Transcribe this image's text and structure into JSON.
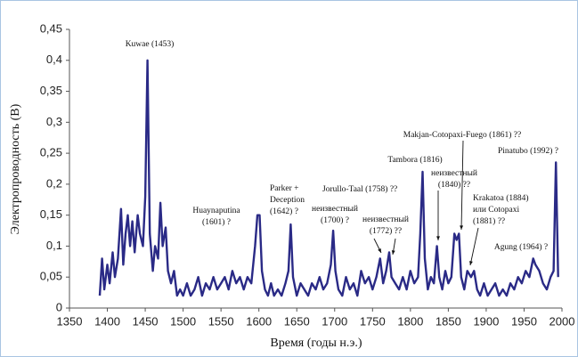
{
  "chart_data": {
    "type": "line",
    "x_label": "Время (годы н.э.)",
    "y_label": "Электропроводность (В)",
    "xlim": [
      1350,
      2000
    ],
    "xticks": [
      1350,
      1400,
      1450,
      1500,
      1550,
      1600,
      1650,
      1700,
      1750,
      1800,
      1850,
      1900,
      1950,
      2000
    ],
    "ylim": [
      0,
      0.45
    ],
    "yticks": [
      {
        "value": 0,
        "label": "0"
      },
      {
        "value": 0.05,
        "label": "0,05"
      },
      {
        "value": 0.1,
        "label": "0,1"
      },
      {
        "value": 0.15,
        "label": "0,15"
      },
      {
        "value": 0.2,
        "label": "0,2"
      },
      {
        "value": 0.25,
        "label": "0,25"
      },
      {
        "value": 0.3,
        "label": "0,3"
      },
      {
        "value": 0.35,
        "label": "0,35"
      },
      {
        "value": 0.4,
        "label": "0,4"
      },
      {
        "value": 0.45,
        "label": "0,45"
      }
    ],
    "grid": false,
    "series": [
      {
        "name": "Электропроводность",
        "color": "#2a2a86",
        "x": [
          1390,
          1393,
          1396,
          1400,
          1403,
          1407,
          1410,
          1414,
          1418,
          1421,
          1424,
          1427,
          1430,
          1433,
          1436,
          1440,
          1443,
          1447,
          1450,
          1453,
          1456,
          1460,
          1463,
          1467,
          1470,
          1473,
          1477,
          1480,
          1484,
          1488,
          1492,
          1496,
          1500,
          1505,
          1510,
          1515,
          1520,
          1525,
          1530,
          1535,
          1540,
          1545,
          1550,
          1555,
          1560,
          1565,
          1570,
          1575,
          1580,
          1585,
          1590,
          1595,
          1598,
          1601,
          1604,
          1608,
          1612,
          1616,
          1620,
          1625,
          1630,
          1635,
          1639,
          1642,
          1645,
          1650,
          1655,
          1660,
          1665,
          1670,
          1675,
          1680,
          1685,
          1690,
          1695,
          1698,
          1701,
          1705,
          1710,
          1715,
          1720,
          1725,
          1730,
          1735,
          1740,
          1745,
          1750,
          1755,
          1760,
          1764,
          1768,
          1772,
          1775,
          1780,
          1785,
          1790,
          1795,
          1800,
          1805,
          1810,
          1813,
          1816,
          1819,
          1823,
          1827,
          1831,
          1835,
          1838,
          1842,
          1846,
          1850,
          1854,
          1858,
          1861,
          1864,
          1867,
          1871,
          1875,
          1880,
          1884,
          1888,
          1892,
          1897,
          1902,
          1907,
          1912,
          1917,
          1922,
          1927,
          1932,
          1937,
          1942,
          1947,
          1952,
          1957,
          1962,
          1965,
          1970,
          1975,
          1980,
          1985,
          1989,
          1992,
          1995
        ],
        "values": [
          0.02,
          0.08,
          0.03,
          0.07,
          0.04,
          0.09,
          0.05,
          0.08,
          0.16,
          0.07,
          0.12,
          0.15,
          0.1,
          0.14,
          0.09,
          0.15,
          0.12,
          0.1,
          0.18,
          0.4,
          0.12,
          0.06,
          0.1,
          0.08,
          0.17,
          0.1,
          0.13,
          0.06,
          0.04,
          0.06,
          0.02,
          0.03,
          0.02,
          0.04,
          0.02,
          0.03,
          0.05,
          0.02,
          0.04,
          0.03,
          0.05,
          0.03,
          0.04,
          0.05,
          0.03,
          0.06,
          0.04,
          0.05,
          0.03,
          0.05,
          0.04,
          0.1,
          0.15,
          0.15,
          0.06,
          0.03,
          0.02,
          0.04,
          0.02,
          0.03,
          0.02,
          0.04,
          0.06,
          0.135,
          0.05,
          0.02,
          0.04,
          0.03,
          0.02,
          0.04,
          0.03,
          0.05,
          0.03,
          0.04,
          0.07,
          0.125,
          0.06,
          0.03,
          0.02,
          0.05,
          0.03,
          0.04,
          0.02,
          0.06,
          0.04,
          0.05,
          0.03,
          0.05,
          0.08,
          0.04,
          0.06,
          0.09,
          0.05,
          0.04,
          0.03,
          0.05,
          0.03,
          0.06,
          0.04,
          0.05,
          0.12,
          0.22,
          0.08,
          0.03,
          0.05,
          0.04,
          0.1,
          0.05,
          0.03,
          0.06,
          0.04,
          0.05,
          0.12,
          0.11,
          0.12,
          0.05,
          0.03,
          0.06,
          0.05,
          0.06,
          0.03,
          0.02,
          0.04,
          0.02,
          0.03,
          0.04,
          0.02,
          0.03,
          0.02,
          0.04,
          0.03,
          0.05,
          0.04,
          0.06,
          0.05,
          0.08,
          0.07,
          0.06,
          0.04,
          0.03,
          0.05,
          0.06,
          0.235,
          0.05
        ]
      }
    ],
    "annotations": [
      [
        "Kuwae (1453)"
      ],
      [
        "Huaynaputina",
        "(1601) ?"
      ],
      [
        "Parker +",
        "Deception",
        "(1642) ?"
      ],
      [
        "неизвестный",
        "(1700) ?"
      ],
      [
        "Jorullo-Taal  (1758) ??"
      ],
      [
        "неизвестный",
        "(1772) ??"
      ],
      [
        "Tambora (1816)"
      ],
      [
        "Makjan-Cotopaxi-Fuego (1861) ??"
      ],
      [
        "неизвестный",
        "(1840) ??"
      ],
      [
        "Pinatubo (1992) ?"
      ],
      [
        "Krakatoa (1884)",
        "или Cotopaxi",
        "(1881) ??"
      ],
      [
        "Agung (1964) ?"
      ]
    ]
  }
}
